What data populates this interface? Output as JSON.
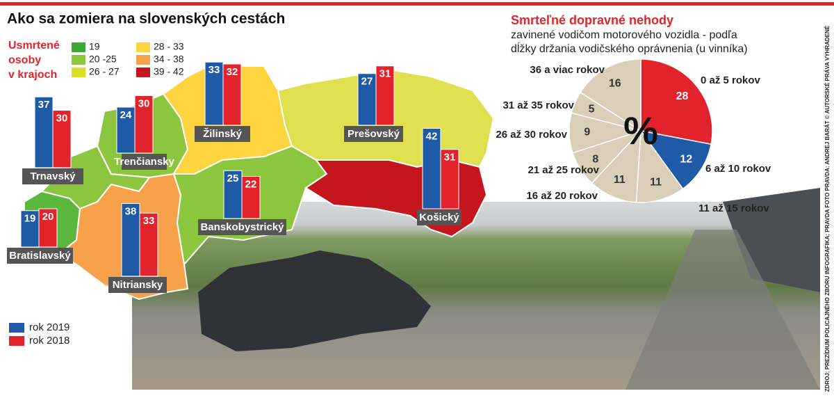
{
  "chart_data": [
    {
      "type": "bar",
      "title": "Ako sa zomiera na slovenských cestách",
      "categories": [
        "Bratislavský",
        "Trnavský",
        "Trenčiansky",
        "Nitriansky",
        "Žilinský",
        "Banskobystrický",
        "Prešovský",
        "Košický"
      ],
      "series": [
        {
          "name": "rok 2019",
          "color": "#1f5aa6",
          "values": [
            19,
            37,
            24,
            38,
            33,
            25,
            27,
            42
          ]
        },
        {
          "name": "rok 2018",
          "color": "#e3232c",
          "values": [
            20,
            30,
            30,
            33,
            32,
            22,
            31,
            31
          ]
        }
      ],
      "map": {
        "title_lines": [
          "Usmrtené",
          "osoby",
          "v krajoch"
        ],
        "legend": [
          {
            "label": "19",
            "color": "#3aaa35"
          },
          {
            "label": "20 -25",
            "color": "#8cc63f"
          },
          {
            "label": "26 - 27",
            "color": "#d9e021"
          },
          {
            "label": "28 - 33",
            "color": "#fcd440"
          },
          {
            "label": "34 - 38",
            "color": "#f7a14a"
          },
          {
            "label": "39 - 42",
            "color": "#c4161c"
          }
        ],
        "region_colors": [
          "#5cb83c",
          "#8cc63f",
          "#8cc63f",
          "#f7a14a",
          "#fcd440",
          "#8cc63f",
          "#dfe050",
          "#c4161c"
        ]
      },
      "source": "ZDROJ: PREZÍDIUM POLICAJNÉHO ZBORU   INFOGRAFIKA: PRAVDA   FOTO PRAVDA: ANDREJ BARÁT   © AUTORSKÉ PRÁVA VYHRADENÉ"
    },
    {
      "type": "pie",
      "title": "Smrteľné dopravné nehody",
      "subtitle_lines": [
        "zavinené vodičom motorového vozidla - podľa",
        "dĺžky držania vodičského oprávnenia (u vinníka)"
      ],
      "center_label": "%",
      "categories": [
        "0 až 5 rokov",
        "6 až 10 rokov",
        "11 až 15 rokov",
        "16 až 20 rokov",
        "21 až 25 rokov",
        "26 až 30 rokov",
        "31 až 35 rokov",
        "36 a viac rokov"
      ],
      "values": [
        28,
        12,
        11,
        11,
        8,
        9,
        5,
        16
      ],
      "colors": [
        "#e3232c",
        "#1f5aa6",
        "#d9cfb8",
        "#d9cfb8",
        "#d9cfb8",
        "#d9cfb8",
        "#d9cfb8",
        "#d9cfb8"
      ]
    }
  ]
}
